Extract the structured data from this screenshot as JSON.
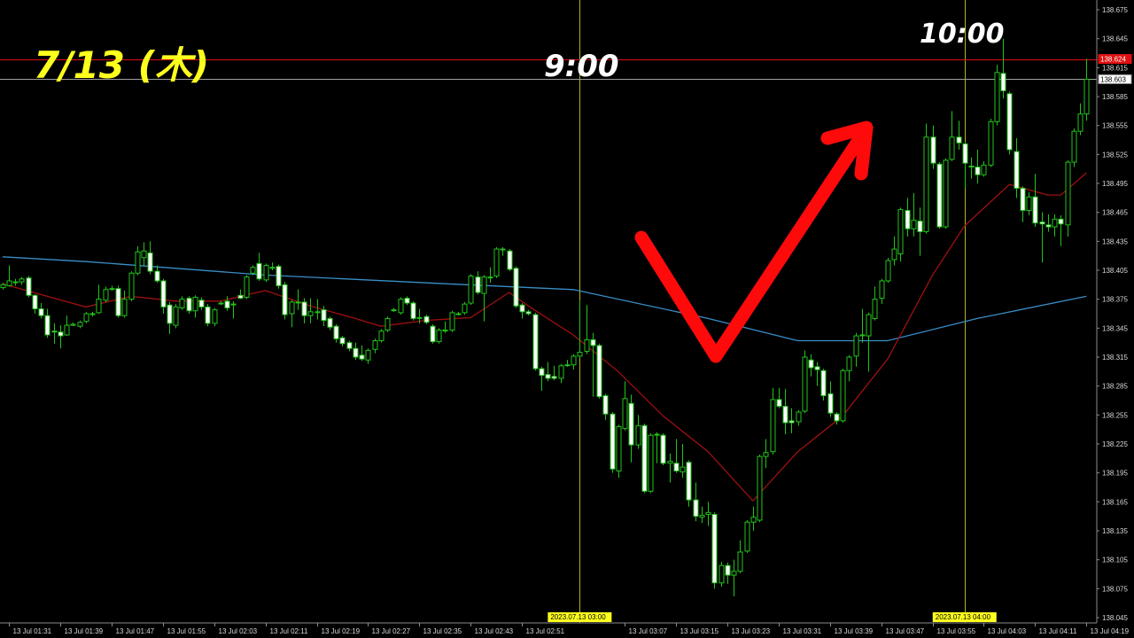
{
  "chart_data": {
    "type": "candlestick",
    "timeframe": "M1",
    "start": "2023.07.13 01:30",
    "ylim": [
      138.045,
      138.675
    ],
    "grid": false,
    "colors": {
      "background": "#000000",
      "candle_outline": "#22c41a",
      "bear_fill": "#ffffff",
      "bull_fill": "#000000",
      "ma_fast": "#a01010",
      "ma_slow": "#3a8ec8",
      "vline": "#b4b41e",
      "annotation_red": "#ff0a0a",
      "annotation_yellow": "#ffff1e"
    },
    "y_ticks": [
      "138.675",
      "138.645",
      "138.615",
      "138.585",
      "138.555",
      "138.525",
      "138.495",
      "138.465",
      "138.435",
      "138.405",
      "138.375",
      "138.345",
      "138.315",
      "138.285",
      "138.255",
      "138.225",
      "138.195",
      "138.165",
      "138.135",
      "138.105",
      "138.075",
      "138.045"
    ],
    "x_ticks": [
      {
        "time": "01:31",
        "label": "13 Jul 01:31"
      },
      {
        "time": "01:39",
        "label": "13 Jul 01:39"
      },
      {
        "time": "01:47",
        "label": "13 Jul 01:47"
      },
      {
        "time": "01:55",
        "label": "13 Jul 01:55"
      },
      {
        "time": "02:03",
        "label": "13 Jul 02:03"
      },
      {
        "time": "02:11",
        "label": "13 Jul 02:11"
      },
      {
        "time": "02:19",
        "label": "13 Jul 02:19"
      },
      {
        "time": "02:27",
        "label": "13 Jul 02:27"
      },
      {
        "time": "02:35",
        "label": "13 Jul 02:35"
      },
      {
        "time": "02:43",
        "label": "13 Jul 02:43"
      },
      {
        "time": "02:51",
        "label": "13 Jul 02:51"
      },
      {
        "time": "03:07",
        "label": "13 Jul 03:07"
      },
      {
        "time": "03:15",
        "label": "13 Jul 03:15"
      },
      {
        "time": "03:23",
        "label": "13 Jul 03:23"
      },
      {
        "time": "03:31",
        "label": "13 Jul 03:31"
      },
      {
        "time": "03:39",
        "label": "13 Jul 03:39"
      },
      {
        "time": "03:47",
        "label": "13 Jul 03:47"
      },
      {
        "time": "03:55",
        "label": "13 Jul 03:55"
      },
      {
        "time": "04:03",
        "label": "13 Jul 04:03"
      },
      {
        "time": "04:11",
        "label": "13 Jul 04:11"
      },
      {
        "time": "04:19",
        "label": "13 Jul 04:19"
      }
    ],
    "vertical_lines": [
      {
        "time": "03:00",
        "label": "2023.07.13 03:00"
      },
      {
        "time": "04:00",
        "label": "2023.07.13 04:00"
      }
    ],
    "horizontal_lines": [
      {
        "price": 138.624,
        "label": "138.624",
        "color": "#e01010"
      },
      {
        "price": 138.603,
        "label": "138.603",
        "color": "#a0a0a0"
      }
    ],
    "ohlc": [
      [
        138.387,
        138.392,
        138.385,
        138.39
      ],
      [
        138.389,
        138.41,
        138.388,
        138.394
      ],
      [
        138.393,
        138.396,
        138.389,
        138.393
      ],
      [
        138.393,
        138.398,
        138.39,
        138.396
      ],
      [
        138.397,
        138.399,
        138.377,
        138.379
      ],
      [
        138.379,
        138.38,
        138.36,
        138.365
      ],
      [
        138.365,
        138.371,
        138.355,
        138.358
      ],
      [
        138.358,
        138.365,
        138.335,
        138.338
      ],
      [
        138.342,
        138.35,
        138.329,
        138.341
      ],
      [
        138.341,
        138.348,
        138.324,
        138.337
      ],
      [
        138.338,
        138.358,
        138.337,
        138.348
      ],
      [
        138.348,
        138.351,
        138.347,
        138.349
      ],
      [
        138.347,
        138.353,
        138.345,
        138.351
      ],
      [
        138.352,
        138.362,
        138.35,
        138.36
      ],
      [
        138.36,
        138.362,
        138.357,
        138.36
      ],
      [
        138.361,
        138.39,
        138.36,
        138.375
      ],
      [
        138.374,
        138.388,
        138.372,
        138.385
      ],
      [
        138.386,
        138.389,
        138.384,
        138.386
      ],
      [
        138.386,
        138.389,
        138.356,
        138.358
      ],
      [
        138.358,
        138.384,
        138.356,
        138.375
      ],
      [
        138.375,
        138.404,
        138.373,
        138.402
      ],
      [
        138.402,
        138.43,
        138.4,
        138.424
      ],
      [
        138.418,
        138.434,
        138.41,
        138.425
      ],
      [
        138.423,
        138.435,
        138.401,
        138.404
      ],
      [
        138.404,
        138.41,
        138.392,
        138.394
      ],
      [
        138.394,
        138.396,
        138.36,
        138.367
      ],
      [
        138.369,
        138.372,
        138.339,
        138.35
      ],
      [
        138.348,
        138.37,
        138.345,
        138.367
      ],
      [
        138.366,
        138.378,
        138.364,
        138.375
      ],
      [
        138.376,
        138.378,
        138.36,
        138.363
      ],
      [
        138.363,
        138.379,
        138.356,
        138.377
      ],
      [
        138.374,
        138.377,
        138.364,
        138.367
      ],
      [
        138.367,
        138.37,
        138.347,
        138.35
      ],
      [
        138.35,
        138.366,
        138.347,
        138.364
      ],
      [
        138.371,
        138.373,
        138.369,
        138.371
      ],
      [
        138.373,
        138.378,
        138.363,
        138.366
      ],
      [
        138.37,
        138.373,
        138.355,
        138.37
      ],
      [
        138.379,
        138.385,
        138.375,
        138.376
      ],
      [
        138.377,
        138.4,
        138.375,
        138.398
      ],
      [
        138.402,
        138.41,
        138.4,
        138.408
      ],
      [
        138.412,
        138.423,
        138.394,
        138.396
      ],
      [
        138.395,
        138.412,
        138.393,
        138.41
      ],
      [
        138.408,
        138.413,
        138.405,
        138.408
      ],
      [
        138.409,
        138.411,
        138.386,
        138.389
      ],
      [
        138.39,
        138.393,
        138.354,
        138.359
      ],
      [
        138.36,
        138.374,
        138.346,
        138.372
      ],
      [
        138.372,
        138.385,
        138.364,
        138.372
      ],
      [
        138.372,
        138.376,
        138.35,
        138.358
      ],
      [
        138.358,
        138.376,
        138.35,
        138.362
      ],
      [
        138.362,
        138.375,
        138.354,
        138.362
      ],
      [
        138.364,
        138.368,
        138.347,
        138.353
      ],
      [
        138.355,
        138.357,
        138.343,
        138.346
      ],
      [
        138.347,
        138.349,
        138.33,
        138.334
      ],
      [
        138.335,
        138.337,
        138.326,
        138.329
      ],
      [
        138.33,
        138.332,
        138.321,
        138.324
      ],
      [
        138.324,
        138.33,
        138.312,
        138.315
      ],
      [
        138.317,
        138.327,
        138.311,
        138.313
      ],
      [
        138.312,
        138.324,
        138.308,
        138.322
      ],
      [
        138.323,
        138.334,
        138.319,
        138.332
      ],
      [
        138.332,
        138.344,
        138.33,
        138.342
      ],
      [
        138.343,
        138.357,
        138.341,
        138.355
      ],
      [
        138.364,
        138.366,
        138.362,
        138.364
      ],
      [
        138.361,
        138.377,
        138.359,
        138.375
      ],
      [
        138.376,
        138.378,
        138.369,
        138.371
      ],
      [
        138.371,
        138.373,
        138.353,
        138.355
      ],
      [
        138.356,
        138.365,
        138.35,
        138.356
      ],
      [
        138.357,
        138.359,
        138.349,
        138.351
      ],
      [
        138.347,
        138.349,
        138.329,
        138.331
      ],
      [
        138.331,
        138.345,
        138.329,
        138.343
      ],
      [
        138.343,
        138.352,
        138.34,
        138.343
      ],
      [
        138.343,
        138.363,
        138.341,
        138.361
      ],
      [
        138.36,
        138.362,
        138.358,
        138.36
      ],
      [
        138.361,
        138.372,
        138.359,
        138.37
      ],
      [
        138.371,
        138.401,
        138.369,
        138.399
      ],
      [
        138.398,
        138.404,
        138.38,
        138.382
      ],
      [
        138.381,
        138.4,
        138.352,
        138.398
      ],
      [
        138.398,
        138.408,
        138.392,
        138.398
      ],
      [
        138.399,
        138.429,
        138.397,
        138.427
      ],
      [
        138.427,
        138.429,
        138.42,
        138.427
      ],
      [
        138.425,
        138.427,
        138.404,
        138.406
      ],
      [
        138.407,
        138.409,
        138.366,
        138.368
      ],
      [
        138.369,
        138.371,
        138.355,
        138.362
      ],
      [
        138.362,
        138.364,
        138.358,
        138.36
      ],
      [
        138.359,
        138.361,
        138.301,
        138.303
      ],
      [
        138.303,
        138.305,
        138.28,
        138.296
      ],
      [
        138.297,
        138.31,
        138.29,
        138.293
      ],
      [
        138.295,
        138.306,
        138.291,
        138.293
      ],
      [
        138.293,
        138.308,
        138.288,
        138.306
      ],
      [
        138.307,
        138.312,
        138.305,
        138.307
      ],
      [
        138.307,
        138.318,
        138.302,
        138.316
      ],
      [
        138.316,
        138.374,
        138.314,
        138.32
      ],
      [
        138.321,
        138.369,
        138.318,
        138.333
      ],
      [
        138.333,
        138.34,
        138.274,
        138.327
      ],
      [
        138.327,
        138.329,
        138.272,
        138.274
      ],
      [
        138.275,
        138.277,
        138.25,
        138.256
      ],
      [
        138.256,
        138.258,
        138.195,
        138.199
      ],
      [
        138.197,
        138.245,
        138.19,
        138.243
      ],
      [
        138.241,
        138.29,
        138.239,
        138.272
      ],
      [
        138.267,
        138.276,
        138.206,
        138.224
      ],
      [
        138.224,
        138.255,
        138.22,
        138.244
      ],
      [
        138.244,
        138.246,
        138.174,
        138.176
      ],
      [
        138.176,
        138.236,
        138.174,
        138.234
      ],
      [
        138.235,
        138.237,
        138.205,
        138.235
      ],
      [
        138.234,
        138.236,
        138.203,
        138.205
      ],
      [
        138.205,
        138.215,
        138.185,
        138.207
      ],
      [
        138.205,
        138.23,
        138.195,
        138.197
      ],
      [
        138.196,
        138.225,
        138.19,
        138.201
      ],
      [
        138.206,
        138.208,
        138.16,
        138.167
      ],
      [
        138.167,
        138.185,
        138.145,
        138.15
      ],
      [
        138.149,
        138.16,
        138.143,
        138.151
      ],
      [
        138.152,
        138.165,
        138.14,
        138.154
      ],
      [
        138.152,
        138.154,
        138.075,
        138.081
      ],
      [
        138.081,
        138.103,
        138.077,
        138.099
      ],
      [
        138.099,
        138.102,
        138.08,
        138.089
      ],
      [
        138.089,
        138.105,
        138.067,
        138.093
      ],
      [
        138.093,
        138.125,
        138.091,
        138.113
      ],
      [
        138.114,
        138.146,
        138.112,
        138.144
      ],
      [
        138.144,
        138.16,
        138.135,
        138.149
      ],
      [
        138.146,
        138.214,
        138.144,
        138.212
      ],
      [
        138.212,
        138.23,
        138.2,
        138.216
      ],
      [
        138.217,
        138.283,
        138.214,
        138.271
      ],
      [
        138.271,
        138.283,
        138.262,
        138.264
      ],
      [
        138.264,
        138.282,
        138.235,
        138.247
      ],
      [
        138.249,
        138.262,
        138.236,
        138.247
      ],
      [
        138.248,
        138.26,
        138.244,
        138.258
      ],
      [
        138.259,
        138.322,
        138.257,
        138.315
      ],
      [
        138.312,
        138.318,
        138.295,
        138.304
      ],
      [
        138.305,
        138.31,
        138.285,
        138.302
      ],
      [
        138.301,
        138.303,
        138.27,
        138.275
      ],
      [
        138.277,
        138.29,
        138.253,
        138.257
      ],
      [
        138.256,
        138.258,
        138.245,
        138.249
      ],
      [
        138.249,
        138.303,
        138.247,
        138.301
      ],
      [
        138.301,
        138.317,
        138.29,
        138.315
      ],
      [
        138.316,
        138.34,
        138.305,
        138.337
      ],
      [
        138.338,
        138.365,
        138.33,
        138.338
      ],
      [
        138.337,
        138.361,
        138.3,
        138.359
      ],
      [
        138.355,
        138.388,
        138.353,
        138.375
      ],
      [
        138.376,
        138.396,
        138.37,
        138.394
      ],
      [
        138.394,
        138.418,
        138.392,
        138.415
      ],
      [
        138.416,
        138.44,
        138.41,
        138.427
      ],
      [
        138.422,
        138.47,
        138.414,
        138.468
      ],
      [
        138.467,
        138.48,
        138.44,
        138.448
      ],
      [
        138.448,
        138.485,
        138.44,
        138.457
      ],
      [
        138.456,
        138.47,
        138.42,
        138.445
      ],
      [
        138.445,
        138.557,
        138.443,
        138.543
      ],
      [
        138.543,
        138.555,
        138.51,
        138.516
      ],
      [
        138.515,
        138.517,
        138.448,
        138.45
      ],
      [
        138.45,
        138.521,
        138.448,
        138.519
      ],
      [
        138.52,
        138.57,
        138.518,
        138.543
      ],
      [
        138.543,
        138.56,
        138.53,
        138.537
      ],
      [
        138.536,
        138.538,
        138.49,
        138.516
      ],
      [
        138.513,
        138.522,
        138.5,
        138.513
      ],
      [
        138.512,
        138.53,
        138.495,
        138.504
      ],
      [
        138.504,
        138.518,
        138.502,
        138.514
      ],
      [
        138.514,
        138.562,
        138.512,
        138.559
      ],
      [
        138.559,
        138.618,
        138.555,
        138.61
      ],
      [
        138.609,
        138.645,
        138.583,
        138.591
      ],
      [
        138.588,
        138.59,
        138.525,
        138.53
      ],
      [
        138.528,
        138.542,
        138.48,
        138.49
      ],
      [
        138.49,
        138.492,
        138.455,
        138.467
      ],
      [
        138.467,
        138.486,
        138.462,
        138.481
      ],
      [
        138.481,
        138.505,
        138.45,
        138.454
      ],
      [
        138.455,
        138.465,
        138.413,
        138.453
      ],
      [
        138.452,
        138.463,
        138.445,
        138.45
      ],
      [
        138.45,
        138.463,
        138.44,
        138.458
      ],
      [
        138.458,
        138.462,
        138.43,
        138.453
      ],
      [
        138.452,
        138.519,
        138.44,
        138.517
      ],
      [
        138.517,
        138.552,
        138.512,
        138.549
      ],
      [
        138.549,
        138.578,
        138.545,
        138.567
      ],
      [
        138.567,
        138.624,
        138.56,
        138.603
      ]
    ],
    "ma_fast": [
      [
        "01:30",
        138.391
      ],
      [
        "01:37",
        138.378
      ],
      [
        "01:43",
        138.367
      ],
      [
        "01:50",
        138.378
      ],
      [
        "01:57",
        138.373
      ],
      [
        "02:04",
        138.373
      ],
      [
        "02:11",
        138.384
      ],
      [
        "02:18",
        138.368
      ],
      [
        "02:25",
        138.355
      ],
      [
        "02:29",
        138.347
      ],
      [
        "02:36",
        138.353
      ],
      [
        "02:43",
        138.356
      ],
      [
        "02:49",
        138.382
      ],
      [
        "02:52",
        138.368
      ],
      [
        "02:59",
        138.338
      ],
      [
        "03:06",
        138.3
      ],
      [
        "03:13",
        138.254
      ],
      [
        "03:20",
        138.217
      ],
      [
        "03:27",
        138.166
      ],
      [
        "03:34",
        138.217
      ],
      [
        "03:41",
        138.254
      ],
      [
        "03:48",
        138.313
      ],
      [
        "03:55",
        138.4
      ],
      [
        "04:00",
        138.451
      ],
      [
        "04:07",
        138.494
      ],
      [
        "04:13",
        138.483
      ],
      [
        "04:15",
        138.483
      ],
      [
        "04:19",
        138.506
      ]
    ],
    "ma_slow": [
      [
        "01:30",
        138.419
      ],
      [
        "01:43",
        138.414
      ],
      [
        "02:11",
        138.4
      ],
      [
        "02:39",
        138.391
      ],
      [
        "02:59",
        138.385
      ],
      [
        "03:20",
        138.355
      ],
      [
        "03:34",
        138.332
      ],
      [
        "03:48",
        138.332
      ],
      [
        "04:02",
        138.355
      ],
      [
        "04:19",
        138.378
      ]
    ]
  },
  "annotations": {
    "date": "7/13 (木)",
    "time_9": "9:00",
    "time_10": "10:00",
    "arrow": "red-check-arrow"
  }
}
